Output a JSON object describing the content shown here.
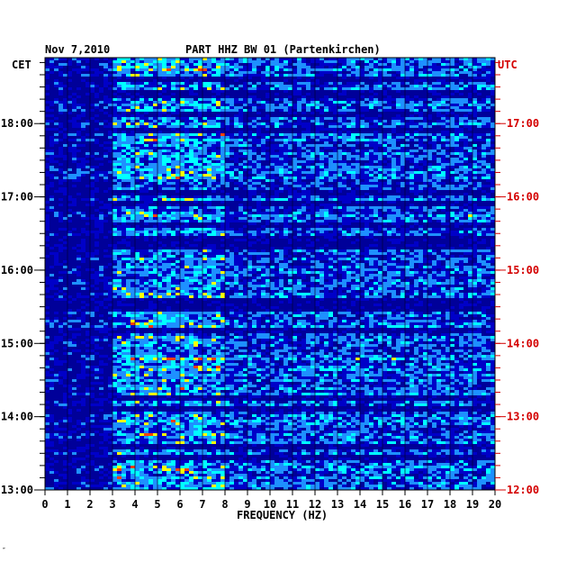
{
  "header": {
    "date": "Nov 7,2010",
    "title": "PART HHZ BW 01 (Partenkirchen)",
    "tz_left": "CET",
    "tz_right": "UTC"
  },
  "corner_mark": "″",
  "colors": {
    "background_dark": "#000099",
    "spectrum_low": "#0000c8",
    "spectrum_mid": "#1e90ff",
    "spectrum_high": "#00ffff",
    "spectrum_peak": "#ffff00",
    "spectrum_max": "#ff4000",
    "utc_label": "#d40000"
  },
  "chart_data": {
    "type": "heatmap",
    "title": "PART HHZ BW 01 (Partenkirchen)",
    "xlabel": "FREQUENCY (HZ)",
    "ylabel_left": "CET",
    "ylabel_right": "UTC",
    "x": [
      0,
      1,
      2,
      3,
      4,
      5,
      6,
      7,
      8,
      9,
      10,
      11,
      12,
      13,
      14,
      15,
      16,
      17,
      18,
      19,
      20
    ],
    "x_tick_labels": [
      "0",
      "1",
      "2",
      "3",
      "4",
      "5",
      "6",
      "7",
      "8",
      "9",
      "10",
      "11",
      "12",
      "13",
      "14",
      "15",
      "16",
      "17",
      "18",
      "19",
      "20"
    ],
    "xlim": [
      0,
      20
    ],
    "ylim_hours_cet": [
      13,
      18.9
    ],
    "y_left_ticks": [
      {
        "value": 13,
        "label": "13:00"
      },
      {
        "value": 14,
        "label": "14:00"
      },
      {
        "value": 15,
        "label": "15:00"
      },
      {
        "value": 16,
        "label": "16:00"
      },
      {
        "value": 17,
        "label": "17:00"
      },
      {
        "value": 18,
        "label": "18:00"
      }
    ],
    "y_right_ticks": [
      {
        "value": 13,
        "label": "12:00"
      },
      {
        "value": 14,
        "label": "13:00"
      },
      {
        "value": 15,
        "label": "14:00"
      },
      {
        "value": 16,
        "label": "15:00"
      },
      {
        "value": 17,
        "label": "16:00"
      },
      {
        "value": 18,
        "label": "17:00"
      }
    ],
    "minor_ticks_per_hour": 6,
    "grid": true,
    "intensity_bands_hz": [
      {
        "from": 0,
        "to": 3,
        "level": 0.15
      },
      {
        "from": 3,
        "to": 8,
        "level": 0.55
      },
      {
        "from": 8,
        "to": 20,
        "level": 0.4
      }
    ],
    "quiet_rows_cet": [
      13.45,
      13.62,
      14.12,
      14.28,
      15.2,
      15.5,
      15.58,
      16.35,
      16.45,
      16.62,
      16.92,
      17.08,
      17.92,
      18.15,
      18.42,
      18.62
    ]
  }
}
